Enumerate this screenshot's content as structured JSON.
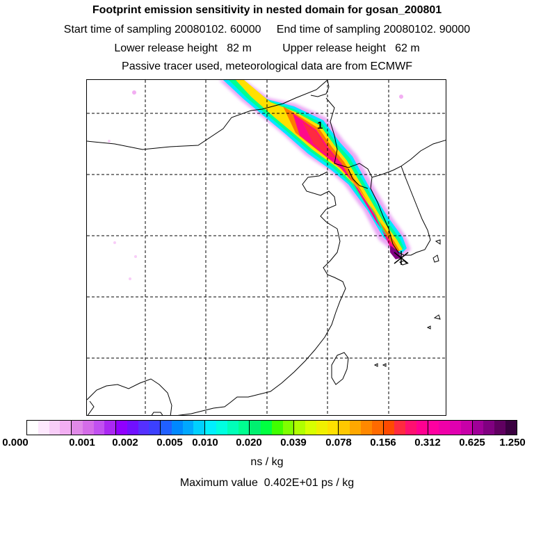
{
  "header": {
    "title": "Footprint emission sensitivity in nested domain for gosan_200801",
    "line2": "Start time of sampling 20080102. 60000     End time of sampling 20080102. 90000",
    "line3": "Lower release height   82 m          Upper release height   62 m",
    "line4": "Passive tracer used, meteorological data are from ECMWF"
  },
  "map": {
    "max_marker_label": "1",
    "release_site_icon": "x-cross-marker-icon"
  },
  "colorbar": {
    "tick_labels": [
      "0.000",
      "0.001",
      "0.002",
      "0.005",
      "0.010",
      "0.020",
      "0.039",
      "0.078",
      "0.156",
      "0.312",
      "0.625",
      "1.250"
    ],
    "colors": [
      "#ffffff",
      "#fde8fd",
      "#f8cdf8",
      "#f2aef2",
      "#e08ae8",
      "#d46ce8",
      "#c150f0",
      "#aa28f2",
      "#9000ff",
      "#7010ff",
      "#5530ff",
      "#3c40ff",
      "#2060ff",
      "#0088ff",
      "#00a8ff",
      "#00d0ff",
      "#00f0ff",
      "#00ffe0",
      "#00ffb8",
      "#00ff90",
      "#00f070",
      "#00ff40",
      "#40ff00",
      "#80ff00",
      "#b0ff00",
      "#d8ff00",
      "#f0f000",
      "#ffe000",
      "#ffc800",
      "#ffa800",
      "#ff8800",
      "#ff6a00",
      "#ff4a00",
      "#ff2a40",
      "#ff1070",
      "#ff0090",
      "#ff00a0",
      "#f000a8",
      "#e000b0",
      "#c800a8",
      "#a00098",
      "#800080",
      "#600060",
      "#3a0040"
    ],
    "units": "ns / kg",
    "max_value": "Maximum value  0.402E+01 ps / kg"
  }
}
